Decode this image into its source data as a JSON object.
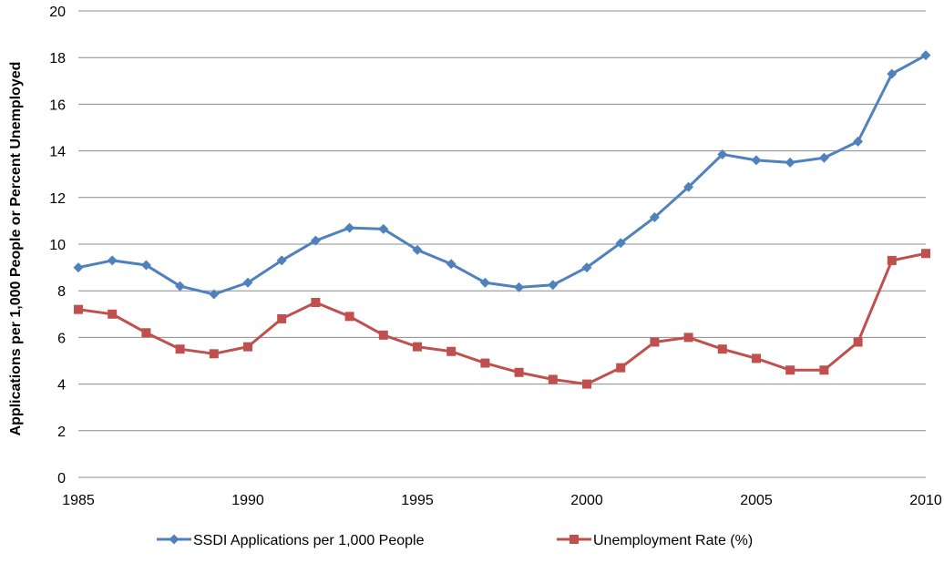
{
  "chart_data": {
    "type": "line",
    "ylabel": "Applications per 1,000 People or Percent Unemployed",
    "xlabel": "",
    "title": "",
    "x": [
      1985,
      1986,
      1987,
      1988,
      1989,
      1990,
      1991,
      1992,
      1993,
      1994,
      1995,
      1996,
      1997,
      1998,
      1999,
      2000,
      2001,
      2002,
      2003,
      2004,
      2005,
      2006,
      2007,
      2008,
      2009,
      2010
    ],
    "xlim": [
      1985,
      2010
    ],
    "ylim": [
      0,
      20
    ],
    "x_ticks": [
      "1985",
      "1990",
      "1995",
      "2000",
      "2005",
      "2010"
    ],
    "y_ticks": [
      "0",
      "2",
      "4",
      "6",
      "8",
      "10",
      "12",
      "14",
      "16",
      "18",
      "20"
    ],
    "grid": "horizontal",
    "legend_position": "bottom",
    "series": [
      {
        "name": "SSDI Applications per 1,000 People",
        "color": "#4f81bd",
        "marker": "diamond",
        "values": [
          9.0,
          9.3,
          9.1,
          8.2,
          7.85,
          8.35,
          9.3,
          10.15,
          10.7,
          10.65,
          9.75,
          9.15,
          8.35,
          8.15,
          8.25,
          9.0,
          10.05,
          11.15,
          12.45,
          13.85,
          13.6,
          13.5,
          13.7,
          14.4,
          17.3,
          18.1
        ]
      },
      {
        "name": "Unemployment Rate (%)",
        "color": "#c0504d",
        "marker": "square",
        "values": [
          7.2,
          7.0,
          6.2,
          5.5,
          5.3,
          5.6,
          6.8,
          7.5,
          6.9,
          6.1,
          5.6,
          5.4,
          4.9,
          4.5,
          4.2,
          4.0,
          4.7,
          5.8,
          6.0,
          5.5,
          5.1,
          4.6,
          4.6,
          5.8,
          9.3,
          9.6
        ]
      }
    ]
  }
}
